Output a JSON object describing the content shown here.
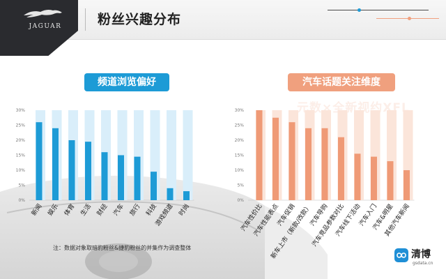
{
  "header": {
    "brand": "JAGUAR",
    "title": "粉丝兴趣分布"
  },
  "watermark": "元数×全新视约XFL",
  "note": "注：数据对象取暗豹粉丝&捷豹粉丝的并集作为调查整体",
  "footer_brand": {
    "name": "清博",
    "url": "gsdata.cn"
  },
  "colors": {
    "left_bar": "#1d9bd6",
    "left_track": "#d9eefa",
    "right_bar": "#ef9a76",
    "right_track": "#fbe5da"
  },
  "chart_data": [
    {
      "type": "bar",
      "title": "频道浏览偏好",
      "categories": [
        "新闻",
        "娱乐",
        "体育",
        "生活",
        "财经",
        "汽车",
        "旅行",
        "科技",
        "游戏频道",
        "时尚"
      ],
      "values": [
        26,
        24,
        20,
        19.5,
        16,
        15,
        14.5,
        9.5,
        4,
        3
      ],
      "ylim": [
        0,
        30
      ],
      "yticks": [
        "0%",
        "5%",
        "10%",
        "15%",
        "20%",
        "25%",
        "30%"
      ],
      "unit": "%",
      "grid": false
    },
    {
      "type": "bar",
      "title": "汽车话题关注维度",
      "categories": [
        "汽车性价比",
        "汽车性能表点",
        "汽车促销",
        "新车上市（新款/改款）",
        "汽车导购",
        "汽车竞品参数对比",
        "汽车线下活动",
        "汽车入门",
        "汽车&明星",
        "其他汽车新闻"
      ],
      "values": [
        30,
        27.5,
        26,
        24,
        24,
        21,
        15.5,
        14.5,
        13,
        10
      ],
      "ylim": [
        0,
        30
      ],
      "yticks": [
        "0%",
        "5%",
        "10%",
        "15%",
        "20%",
        "25%",
        "30%"
      ],
      "unit": "%",
      "grid": false
    }
  ]
}
